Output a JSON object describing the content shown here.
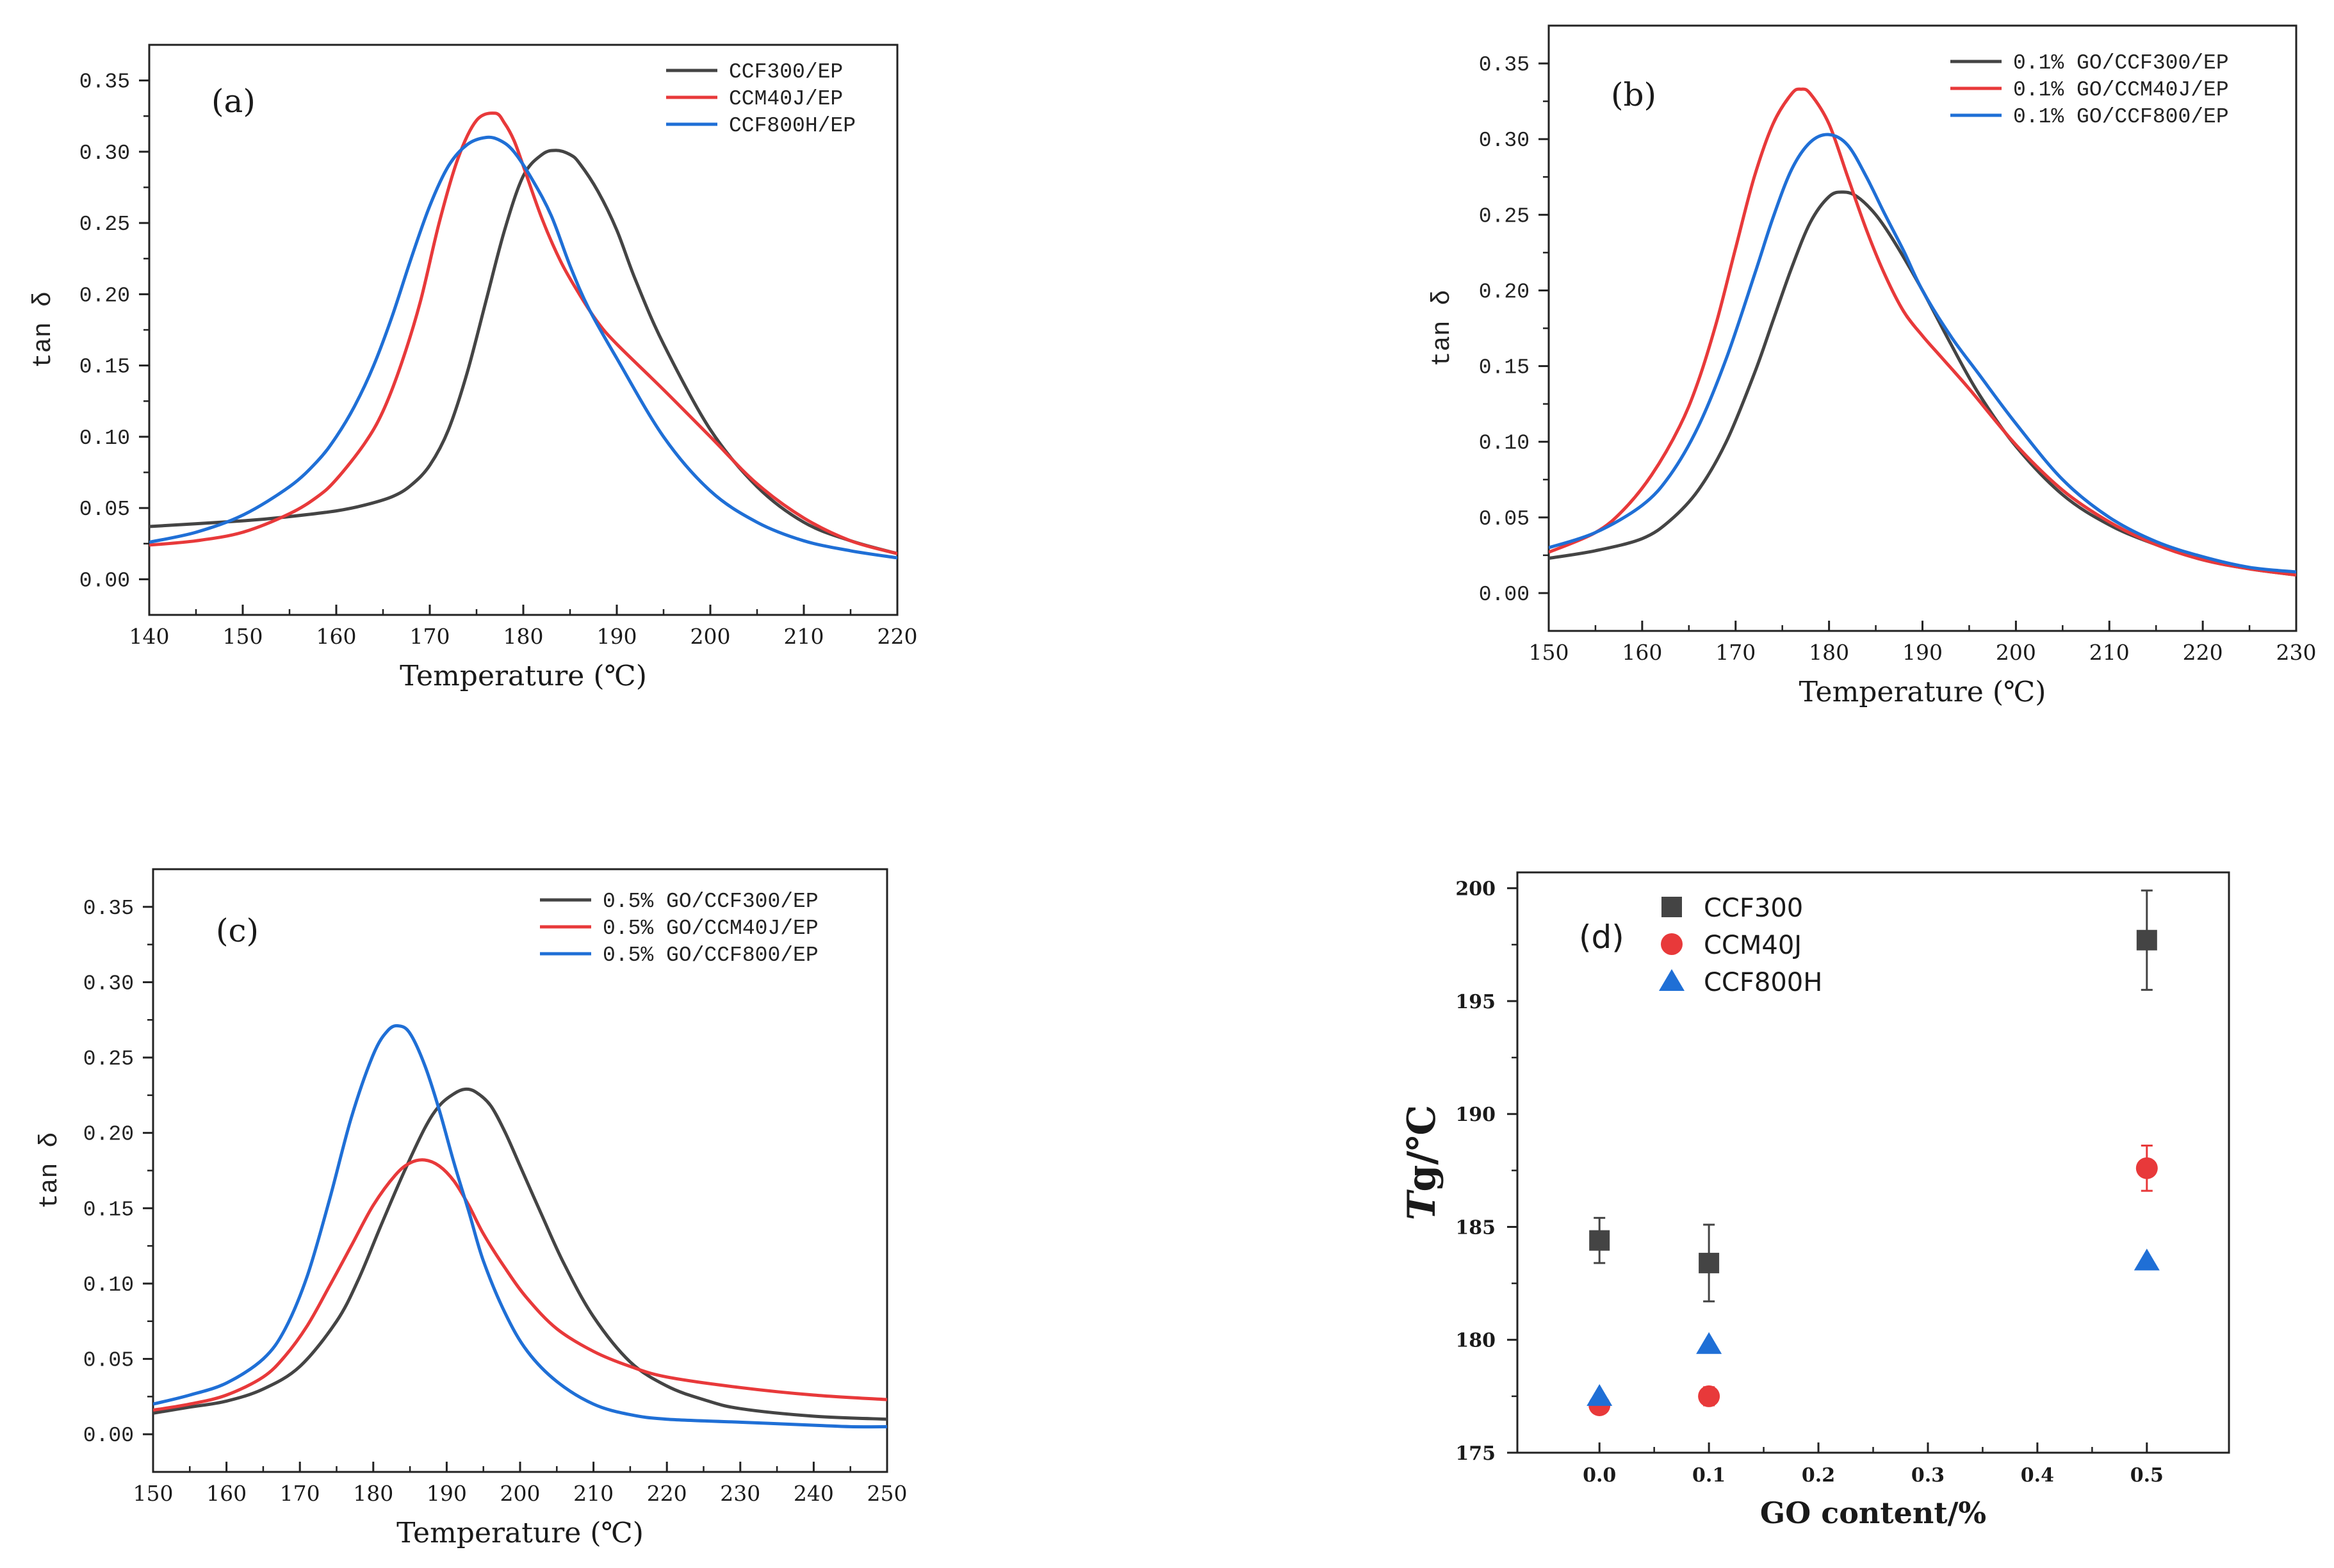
{
  "chart_data": [
    {
      "id": "a",
      "type": "line",
      "panel_label": "(a)",
      "xlabel": "Temperature (℃)",
      "ylabel": "tan δ",
      "xlim": [
        140,
        220
      ],
      "ylim": [
        -0.025,
        0.375
      ],
      "xticks": [
        "140",
        "150",
        "160",
        "170",
        "180",
        "190",
        "200",
        "210",
        "220"
      ],
      "yticks": [
        "0.00",
        "0.05",
        "0.10",
        "0.15",
        "0.20",
        "0.25",
        "0.30",
        "0.35"
      ],
      "legend_position": "top-right",
      "series": [
        {
          "name": "CCF300/EP",
          "color": "#444444",
          "x": [
            140,
            150,
            155,
            160,
            163,
            166,
            168,
            170,
            172,
            174,
            176,
            178,
            180,
            182,
            183.5,
            185,
            186,
            188,
            190,
            192,
            195,
            200,
            205,
            210,
            215,
            220
          ],
          "y": [
            0.037,
            0.041,
            0.044,
            0.048,
            0.052,
            0.058,
            0.066,
            0.08,
            0.105,
            0.145,
            0.195,
            0.245,
            0.283,
            0.298,
            0.301,
            0.298,
            0.292,
            0.272,
            0.245,
            0.21,
            0.165,
            0.105,
            0.065,
            0.04,
            0.027,
            0.018
          ]
        },
        {
          "name": "CCM40J/EP",
          "color": "#e8393a",
          "x": [
            140,
            145,
            150,
            155,
            158,
            160,
            163,
            165,
            167,
            169,
            171,
            173,
            175,
            177,
            178,
            179,
            180,
            182,
            184,
            186,
            188,
            190,
            195,
            200,
            205,
            210,
            215,
            220
          ],
          "y": [
            0.024,
            0.027,
            0.033,
            0.046,
            0.058,
            0.07,
            0.095,
            0.118,
            0.152,
            0.195,
            0.25,
            0.295,
            0.322,
            0.327,
            0.32,
            0.308,
            0.29,
            0.253,
            0.223,
            0.2,
            0.18,
            0.165,
            0.133,
            0.1,
            0.067,
            0.043,
            0.027,
            0.018
          ]
        },
        {
          "name": "CCF800H/EP",
          "color": "#1f6fd6",
          "x": [
            140,
            145,
            150,
            155,
            158,
            160,
            162,
            164,
            166,
            168,
            170,
            172,
            174,
            176,
            177.5,
            179,
            181,
            183,
            185,
            187,
            190,
            195,
            200,
            205,
            210,
            215,
            220
          ],
          "y": [
            0.026,
            0.033,
            0.045,
            0.065,
            0.083,
            0.1,
            0.122,
            0.15,
            0.185,
            0.225,
            0.262,
            0.29,
            0.305,
            0.31,
            0.308,
            0.3,
            0.28,
            0.255,
            0.22,
            0.19,
            0.155,
            0.1,
            0.062,
            0.04,
            0.027,
            0.02,
            0.015
          ]
        }
      ]
    },
    {
      "id": "b",
      "type": "line",
      "panel_label": "(b)",
      "xlabel": "Temperature (℃)",
      "ylabel": "tan δ",
      "xlim": [
        150,
        230
      ],
      "ylim": [
        -0.025,
        0.375
      ],
      "xticks": [
        "150",
        "160",
        "170",
        "180",
        "190",
        "200",
        "210",
        "220",
        "230"
      ],
      "yticks": [
        "0.00",
        "0.05",
        "0.10",
        "0.15",
        "0.20",
        "0.25",
        "0.30",
        "0.35"
      ],
      "legend_position": "top-right",
      "series": [
        {
          "name": "0.1% GO/CCF300/EP",
          "color": "#444444",
          "x": [
            150,
            155,
            160,
            163,
            166,
            169,
            172,
            174,
            176,
            178,
            180,
            181.5,
            183,
            185,
            187,
            190,
            193,
            196,
            200,
            205,
            210,
            215,
            220,
            225,
            230
          ],
          "y": [
            0.023,
            0.028,
            0.036,
            0.048,
            0.068,
            0.1,
            0.145,
            0.18,
            0.215,
            0.245,
            0.262,
            0.265,
            0.262,
            0.25,
            0.232,
            0.2,
            0.165,
            0.132,
            0.097,
            0.065,
            0.045,
            0.032,
            0.022,
            0.016,
            0.012
          ]
        },
        {
          "name": "0.1% GO/CCM40J/EP",
          "color": "#e8393a",
          "x": [
            150,
            155,
            158,
            161,
            164,
            166,
            168,
            170,
            172,
            174,
            176,
            177,
            178,
            180,
            182,
            184,
            186,
            188,
            190,
            192,
            195,
            200,
            205,
            210,
            215,
            220,
            225,
            230
          ],
          "y": [
            0.027,
            0.04,
            0.055,
            0.078,
            0.11,
            0.14,
            0.18,
            0.228,
            0.275,
            0.31,
            0.33,
            0.333,
            0.33,
            0.31,
            0.275,
            0.24,
            0.21,
            0.186,
            0.17,
            0.156,
            0.135,
            0.098,
            0.068,
            0.047,
            0.032,
            0.022,
            0.016,
            0.012
          ]
        },
        {
          "name": "0.1% GO/CCF800/EP",
          "color": "#1f6fd6",
          "x": [
            150,
            155,
            160,
            163,
            166,
            169,
            172,
            174,
            176,
            178,
            180,
            182,
            184,
            186,
            188,
            190,
            193,
            196,
            200,
            205,
            210,
            215,
            220,
            225,
            230
          ],
          "y": [
            0.03,
            0.04,
            0.058,
            0.078,
            0.11,
            0.155,
            0.21,
            0.248,
            0.28,
            0.298,
            0.303,
            0.296,
            0.275,
            0.25,
            0.226,
            0.2,
            0.17,
            0.145,
            0.112,
            0.075,
            0.05,
            0.034,
            0.024,
            0.017,
            0.014
          ]
        }
      ]
    },
    {
      "id": "c",
      "type": "line",
      "panel_label": "(c)",
      "xlabel": "Temperature (℃)",
      "ylabel": "tan δ",
      "xlim": [
        150,
        250
      ],
      "ylim": [
        -0.025,
        0.375
      ],
      "xticks": [
        "150",
        "160",
        "170",
        "180",
        "190",
        "200",
        "210",
        "220",
        "230",
        "240",
        "250"
      ],
      "yticks": [
        "0.00",
        "0.05",
        "0.10",
        "0.15",
        "0.20",
        "0.25",
        "0.30",
        "0.35"
      ],
      "legend_position": "top-right",
      "series": [
        {
          "name": "0.5% GO/CCF300/EP",
          "color": "#444444",
          "x": [
            150,
            155,
            160,
            165,
            170,
            175,
            178,
            181,
            184,
            187,
            189,
            191,
            192.5,
            194,
            196,
            198,
            200,
            203,
            206,
            210,
            215,
            220,
            225,
            230,
            240,
            250
          ],
          "y": [
            0.014,
            0.018,
            0.022,
            0.03,
            0.045,
            0.075,
            0.103,
            0.138,
            0.172,
            0.203,
            0.218,
            0.226,
            0.229,
            0.227,
            0.218,
            0.2,
            0.178,
            0.145,
            0.113,
            0.078,
            0.048,
            0.032,
            0.023,
            0.017,
            0.012,
            0.01
          ]
        },
        {
          "name": "0.5% GO/CCM40J/EP",
          "color": "#e8393a",
          "x": [
            150,
            155,
            160,
            165,
            168,
            171,
            174,
            177,
            180,
            183,
            185,
            187,
            189,
            191,
            193,
            195,
            198,
            201,
            205,
            210,
            215,
            220,
            230,
            240,
            250
          ],
          "y": [
            0.016,
            0.02,
            0.026,
            0.038,
            0.052,
            0.072,
            0.098,
            0.125,
            0.152,
            0.172,
            0.18,
            0.182,
            0.178,
            0.168,
            0.152,
            0.133,
            0.11,
            0.09,
            0.07,
            0.055,
            0.045,
            0.038,
            0.031,
            0.026,
            0.023
          ]
        },
        {
          "name": "0.5% GO/CCF800/EP",
          "color": "#1f6fd6",
          "x": [
            150,
            155,
            160,
            165,
            168,
            171,
            174,
            177,
            180,
            182,
            183.5,
            185,
            187,
            189,
            191,
            193,
            195,
            198,
            201,
            205,
            210,
            215,
            220,
            230,
            240,
            245,
            250
          ],
          "y": [
            0.02,
            0.026,
            0.034,
            0.05,
            0.07,
            0.105,
            0.155,
            0.21,
            0.252,
            0.268,
            0.271,
            0.266,
            0.245,
            0.215,
            0.18,
            0.148,
            0.115,
            0.08,
            0.055,
            0.035,
            0.02,
            0.013,
            0.01,
            0.008,
            0.006,
            0.005,
            0.005
          ]
        }
      ]
    },
    {
      "id": "d",
      "type": "scatter",
      "panel_label": "(d)",
      "xlabel": "GO content/%",
      "ylabel": "Tg/℃",
      "ylabel_italic_part": "T",
      "ylabel_rest": "g/℃",
      "xlim": [
        -0.075,
        0.575
      ],
      "ylim": [
        175,
        200.7
      ],
      "xticks": [
        "0.0",
        "0.1",
        "0.2",
        "0.3",
        "0.4",
        "0.5"
      ],
      "yticks": [
        "175",
        "180",
        "185",
        "190",
        "195",
        "200"
      ],
      "legend_position": "top-left",
      "series": [
        {
          "name": "CCF300",
          "color": "#444444",
          "marker": "square",
          "x": [
            0.0,
            0.1,
            0.5
          ],
          "y": [
            184.4,
            183.4,
            197.7
          ],
          "yerr": [
            1.0,
            1.7,
            2.2
          ]
        },
        {
          "name": "CCM40J",
          "color": "#e8393a",
          "marker": "circle",
          "x": [
            0.0,
            0.1,
            0.5
          ],
          "y": [
            177.1,
            177.5,
            187.6
          ],
          "yerr": [
            0.3,
            0.4,
            1.0
          ]
        },
        {
          "name": "CCF800H",
          "color": "#1f6fd6",
          "marker": "triangle",
          "x": [
            0.0,
            0.1,
            0.5
          ],
          "y": [
            177.5,
            179.8,
            183.5
          ],
          "yerr": [
            0,
            0,
            0
          ]
        }
      ]
    }
  ]
}
